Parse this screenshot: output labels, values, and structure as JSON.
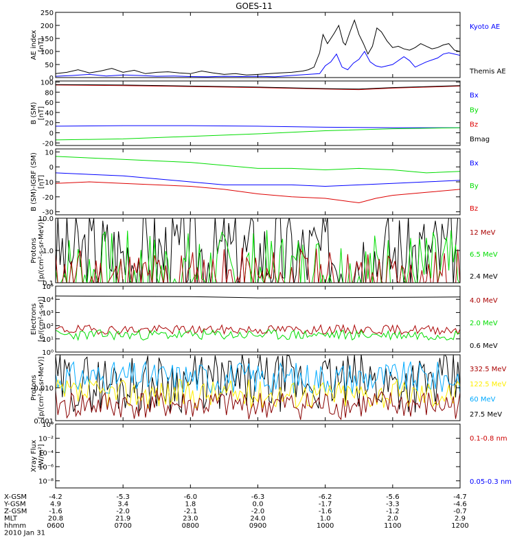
{
  "title": "GOES-11",
  "x_axis": {
    "ticks": [
      "0600",
      "0700",
      "0800",
      "0900",
      "1000",
      "1100",
      "1200"
    ],
    "range_minutes": [
      0,
      360
    ]
  },
  "ephemeris": {
    "rows": [
      {
        "label": "X-GSM",
        "values": [
          "-4.2",
          "-5.3",
          "-6.0",
          "-6.3",
          "-6.2",
          "-5.6",
          "-4.7"
        ]
      },
      {
        "label": "Y-GSM",
        "values": [
          "4.9",
          "3.4",
          "1.8",
          "0.0",
          "-1.7",
          "-3.3",
          "-4.6"
        ]
      },
      {
        "label": "Z-GSM",
        "values": [
          "-1.6",
          "-2.0",
          "-2.1",
          "-2.0",
          "-1.6",
          "-1.2",
          "-0.7"
        ]
      },
      {
        "label": "MLT",
        "values": [
          "20.8",
          "21.9",
          "23.0",
          "24.0",
          "1.0",
          "2.0",
          "2.9"
        ]
      },
      {
        "label": "hhmm",
        "values": [
          "0600",
          "0700",
          "0800",
          "0900",
          "1000",
          "1100",
          "1200"
        ]
      }
    ],
    "date": "2010 Jan 31"
  },
  "chart_data": [
    {
      "type": "line",
      "id": "ae",
      "ylabel": [
        "AE index",
        "[nT]"
      ],
      "scale": "linear",
      "ylim": [
        0,
        250
      ],
      "yticks": [
        {
          "v": 0,
          "t": "0"
        },
        {
          "v": 50,
          "t": "50"
        },
        {
          "v": 100,
          "t": "100"
        },
        {
          "v": 150,
          "t": "150"
        },
        {
          "v": 200,
          "t": "200"
        },
        {
          "v": 250,
          "t": "250"
        }
      ],
      "legend": [
        {
          "label": "Kyoto AE",
          "color": "#0000ff"
        },
        {
          "label": "Themis AE",
          "color": "#000000"
        }
      ],
      "series": [
        {
          "name": "Kyoto AE",
          "color": "#0000ff",
          "x": [
            0,
            15,
            30,
            45,
            60,
            75,
            90,
            105,
            120,
            135,
            150,
            165,
            180,
            195,
            210,
            225,
            235,
            240,
            245,
            250,
            255,
            260,
            265,
            270,
            275,
            280,
            285,
            290,
            300,
            310,
            315,
            320,
            330,
            340,
            345,
            350,
            360
          ],
          "y": [
            5,
            8,
            12,
            6,
            10,
            8,
            5,
            6,
            4,
            3,
            5,
            4,
            5,
            3,
            8,
            12,
            15,
            45,
            60,
            90,
            40,
            30,
            55,
            70,
            100,
            60,
            45,
            40,
            50,
            80,
            65,
            40,
            60,
            75,
            90,
            95,
            85
          ]
        },
        {
          "name": "Themis AE",
          "color": "#000000",
          "x": [
            0,
            10,
            20,
            30,
            40,
            50,
            60,
            70,
            80,
            90,
            100,
            110,
            120,
            130,
            140,
            150,
            160,
            170,
            180,
            190,
            200,
            210,
            220,
            225,
            230,
            235,
            238,
            242,
            248,
            252,
            256,
            258,
            262,
            266,
            270,
            274,
            278,
            282,
            286,
            290,
            295,
            300,
            305,
            310,
            315,
            320,
            325,
            330,
            335,
            340,
            345,
            350,
            355,
            360
          ],
          "y": [
            15,
            20,
            30,
            18,
            25,
            35,
            20,
            28,
            15,
            20,
            22,
            18,
            15,
            25,
            18,
            12,
            15,
            10,
            12,
            15,
            18,
            20,
            25,
            30,
            40,
            95,
            165,
            130,
            170,
            200,
            135,
            125,
            175,
            220,
            165,
            130,
            90,
            120,
            190,
            175,
            140,
            115,
            120,
            110,
            105,
            115,
            130,
            120,
            110,
            115,
            125,
            130,
            105,
            100
          ]
        }
      ]
    },
    {
      "type": "line",
      "id": "b_sm",
      "ylabel": [
        "B (SM)",
        "[nT]"
      ],
      "scale": "linear",
      "ylim": [
        -25,
        102
      ],
      "yticks": [
        {
          "v": -20,
          "t": "-20"
        },
        {
          "v": 0,
          "t": "0"
        },
        {
          "v": 20,
          "t": "20"
        },
        {
          "v": 40,
          "t": "40"
        },
        {
          "v": 60,
          "t": "60"
        },
        {
          "v": 80,
          "t": "80"
        },
        {
          "v": 100,
          "t": "100"
        }
      ],
      "legend": [
        {
          "label": "Bx",
          "color": "#0000ff"
        },
        {
          "label": "By",
          "color": "#00dd00"
        },
        {
          "label": "Bz",
          "color": "#dd0000"
        },
        {
          "label": "Bmag",
          "color": "#000000"
        }
      ],
      "series": [
        {
          "name": "Bx",
          "color": "#0000ff",
          "x": [
            0,
            60,
            120,
            180,
            240,
            300,
            360
          ],
          "y": [
            13,
            14,
            14,
            13,
            11,
            10,
            10
          ]
        },
        {
          "name": "By",
          "color": "#00dd00",
          "x": [
            0,
            60,
            120,
            180,
            240,
            300,
            360
          ],
          "y": [
            -14,
            -12,
            -7,
            -2,
            4,
            8,
            10
          ]
        },
        {
          "name": "Bz",
          "color": "#dd0000",
          "x": [
            0,
            60,
            120,
            180,
            240,
            270,
            300,
            360
          ],
          "y": [
            94,
            93,
            91,
            89,
            86,
            85,
            88,
            92
          ]
        },
        {
          "name": "Bmag",
          "color": "#000000",
          "x": [
            0,
            60,
            120,
            180,
            240,
            270,
            300,
            360
          ],
          "y": [
            95,
            94,
            92,
            90,
            87,
            86,
            89,
            93
          ]
        }
      ]
    },
    {
      "type": "line",
      "id": "b_igrf",
      "ylabel": [
        "B (SM)-IGRF (SM)",
        "[nT]"
      ],
      "scale": "linear",
      "ylim": [
        -32,
        12
      ],
      "yticks": [
        {
          "v": -30,
          "t": "-30"
        },
        {
          "v": -20,
          "t": "-20"
        },
        {
          "v": -10,
          "t": "-10"
        },
        {
          "v": 0,
          "t": "0"
        },
        {
          "v": 10,
          "t": "10"
        }
      ],
      "legend": [
        {
          "label": "Bx",
          "color": "#0000ff"
        },
        {
          "label": "By",
          "color": "#00dd00"
        },
        {
          "label": "Bz",
          "color": "#dd0000"
        }
      ],
      "series": [
        {
          "name": "Bx",
          "color": "#0000ff",
          "x": [
            0,
            30,
            60,
            90,
            120,
            150,
            180,
            210,
            240,
            270,
            300,
            330,
            360
          ],
          "y": [
            -4,
            -5,
            -6,
            -8,
            -10,
            -12,
            -12,
            -12,
            -13,
            -12,
            -11,
            -10,
            -9
          ]
        },
        {
          "name": "By",
          "color": "#00dd00",
          "x": [
            0,
            30,
            60,
            90,
            120,
            150,
            180,
            210,
            240,
            270,
            300,
            330,
            360
          ],
          "y": [
            7,
            6,
            5,
            4,
            3,
            1,
            -1,
            -1,
            -2,
            -1,
            -2,
            -4,
            -3
          ]
        },
        {
          "name": "Bz",
          "color": "#dd0000",
          "x": [
            0,
            30,
            60,
            90,
            120,
            150,
            180,
            210,
            240,
            260,
            270,
            285,
            300,
            330,
            360
          ],
          "y": [
            -11,
            -10,
            -11,
            -12,
            -13,
            -15,
            -18,
            -20,
            -21,
            -23,
            -24,
            -21,
            -19,
            -17,
            -15
          ]
        }
      ]
    },
    {
      "type": "line",
      "id": "protons_hi",
      "ylabel": [
        "Protons",
        "[p/(cm²-s-sr-MeV)]"
      ],
      "scale": "log",
      "ylim": [
        0.1,
        10
      ],
      "yticks": [
        {
          "v": 0.1,
          "t": "0.1"
        },
        {
          "v": 1,
          "t": "1.0"
        },
        {
          "v": 10,
          "t": "10.0"
        }
      ],
      "legend": [
        {
          "label": "12 MeV",
          "color": "#aa0000"
        },
        {
          "label": "6.5 MeV",
          "color": "#00dd00"
        },
        {
          "label": "2.4 MeV",
          "color": "#000000"
        }
      ],
      "series": [
        {
          "name": "2.4 MeV",
          "color": "#000000",
          "noisy": true,
          "base": 0.8,
          "spread": 1.5,
          "seed": 3
        },
        {
          "name": "6.5 MeV",
          "color": "#00dd00",
          "noisy": true,
          "base": 0.18,
          "spread": 1.4,
          "seed": 7
        },
        {
          "name": "12 MeV",
          "color": "#aa0000",
          "noisy": true,
          "base": 0.1,
          "spread": 1.1,
          "seed": 11
        }
      ]
    },
    {
      "type": "line",
      "id": "electrons",
      "ylabel": [
        "Electrons",
        "[e/(cm²-s-sr)]"
      ],
      "scale": "log",
      "ylim": [
        1,
        100000
      ],
      "yticks": [
        {
          "v": 1,
          "t": "10⁰"
        },
        {
          "v": 10,
          "t": "10¹"
        },
        {
          "v": 100,
          "t": "10²"
        },
        {
          "v": 1000,
          "t": "10³"
        },
        {
          "v": 10000,
          "t": "10⁴"
        },
        {
          "v": 100000,
          "t": "10⁵"
        }
      ],
      "legend": [
        {
          "label": "4.0 MeV",
          "color": "#aa0000"
        },
        {
          "label": "2.0 MeV",
          "color": "#00dd00"
        },
        {
          "label": "0.6 MeV",
          "color": "#000000"
        }
      ],
      "series": [
        {
          "name": "0.6 MeV",
          "color": "#000000",
          "x": [
            0,
            60,
            120,
            180,
            240,
            300,
            360
          ],
          "y": [
            18000,
            17000,
            16000,
            13000,
            13500,
            14000,
            15000
          ]
        },
        {
          "name": "4.0 MeV",
          "color": "#aa0000",
          "noisy": true,
          "base": 50,
          "spread": 0.35,
          "seed": 19
        },
        {
          "name": "2.0 MeV",
          "color": "#00dd00",
          "noisy": true,
          "base": 20,
          "spread": 0.4,
          "seed": 23
        }
      ]
    },
    {
      "type": "line",
      "id": "protons_lo",
      "ylabel": [
        "Protons",
        "[p/(cm²-s-sr-MeV)]"
      ],
      "scale": "log",
      "ylim": [
        0.001,
        0.1
      ],
      "yticks": [
        {
          "v": 0.001,
          "t": "0.001"
        },
        {
          "v": 0.01,
          "t": "0.010"
        }
      ],
      "legend": [
        {
          "label": "332.5 MeV",
          "color": "#aa0000"
        },
        {
          "label": "122.5 MeV",
          "color": "#ffee00"
        },
        {
          "label": "60 MeV",
          "color": "#00aaff"
        },
        {
          "label": "27.5 MeV",
          "color": "#000000"
        }
      ],
      "series": [
        {
          "name": "27.5 MeV",
          "color": "#000000",
          "noisy": true,
          "base": 0.014,
          "spread": 0.9,
          "seed": 29
        },
        {
          "name": "60 MeV",
          "color": "#00aaff",
          "noisy": true,
          "base": 0.02,
          "spread": 0.5,
          "seed": 31
        },
        {
          "name": "122.5 MeV",
          "color": "#ffee00",
          "noisy": true,
          "base": 0.0065,
          "spread": 0.45,
          "seed": 37
        },
        {
          "name": "332.5 MeV",
          "color": "#880000",
          "noisy": true,
          "base": 0.003,
          "spread": 0.45,
          "seed": 41
        }
      ]
    },
    {
      "type": "line",
      "id": "xray",
      "ylabel": [
        "Xray Flux",
        "[W/m²]"
      ],
      "scale": "log",
      "ylim": [
        1e-09,
        1
      ],
      "yticks": [
        {
          "v": 1e-08,
          "t": "10⁻⁸"
        },
        {
          "v": 1e-06,
          "t": "10⁻⁶"
        },
        {
          "v": 0.0001,
          "t": "10⁻⁴"
        },
        {
          "v": 0.01,
          "t": "10⁻²"
        },
        {
          "v": 1,
          "t": "10⁰"
        }
      ],
      "legend": [
        {
          "label": "0.1-0.8 nm",
          "color": "#cc0000"
        },
        {
          "label": "0.05-0.3 nm",
          "color": "#0000ff"
        }
      ],
      "series": []
    }
  ]
}
